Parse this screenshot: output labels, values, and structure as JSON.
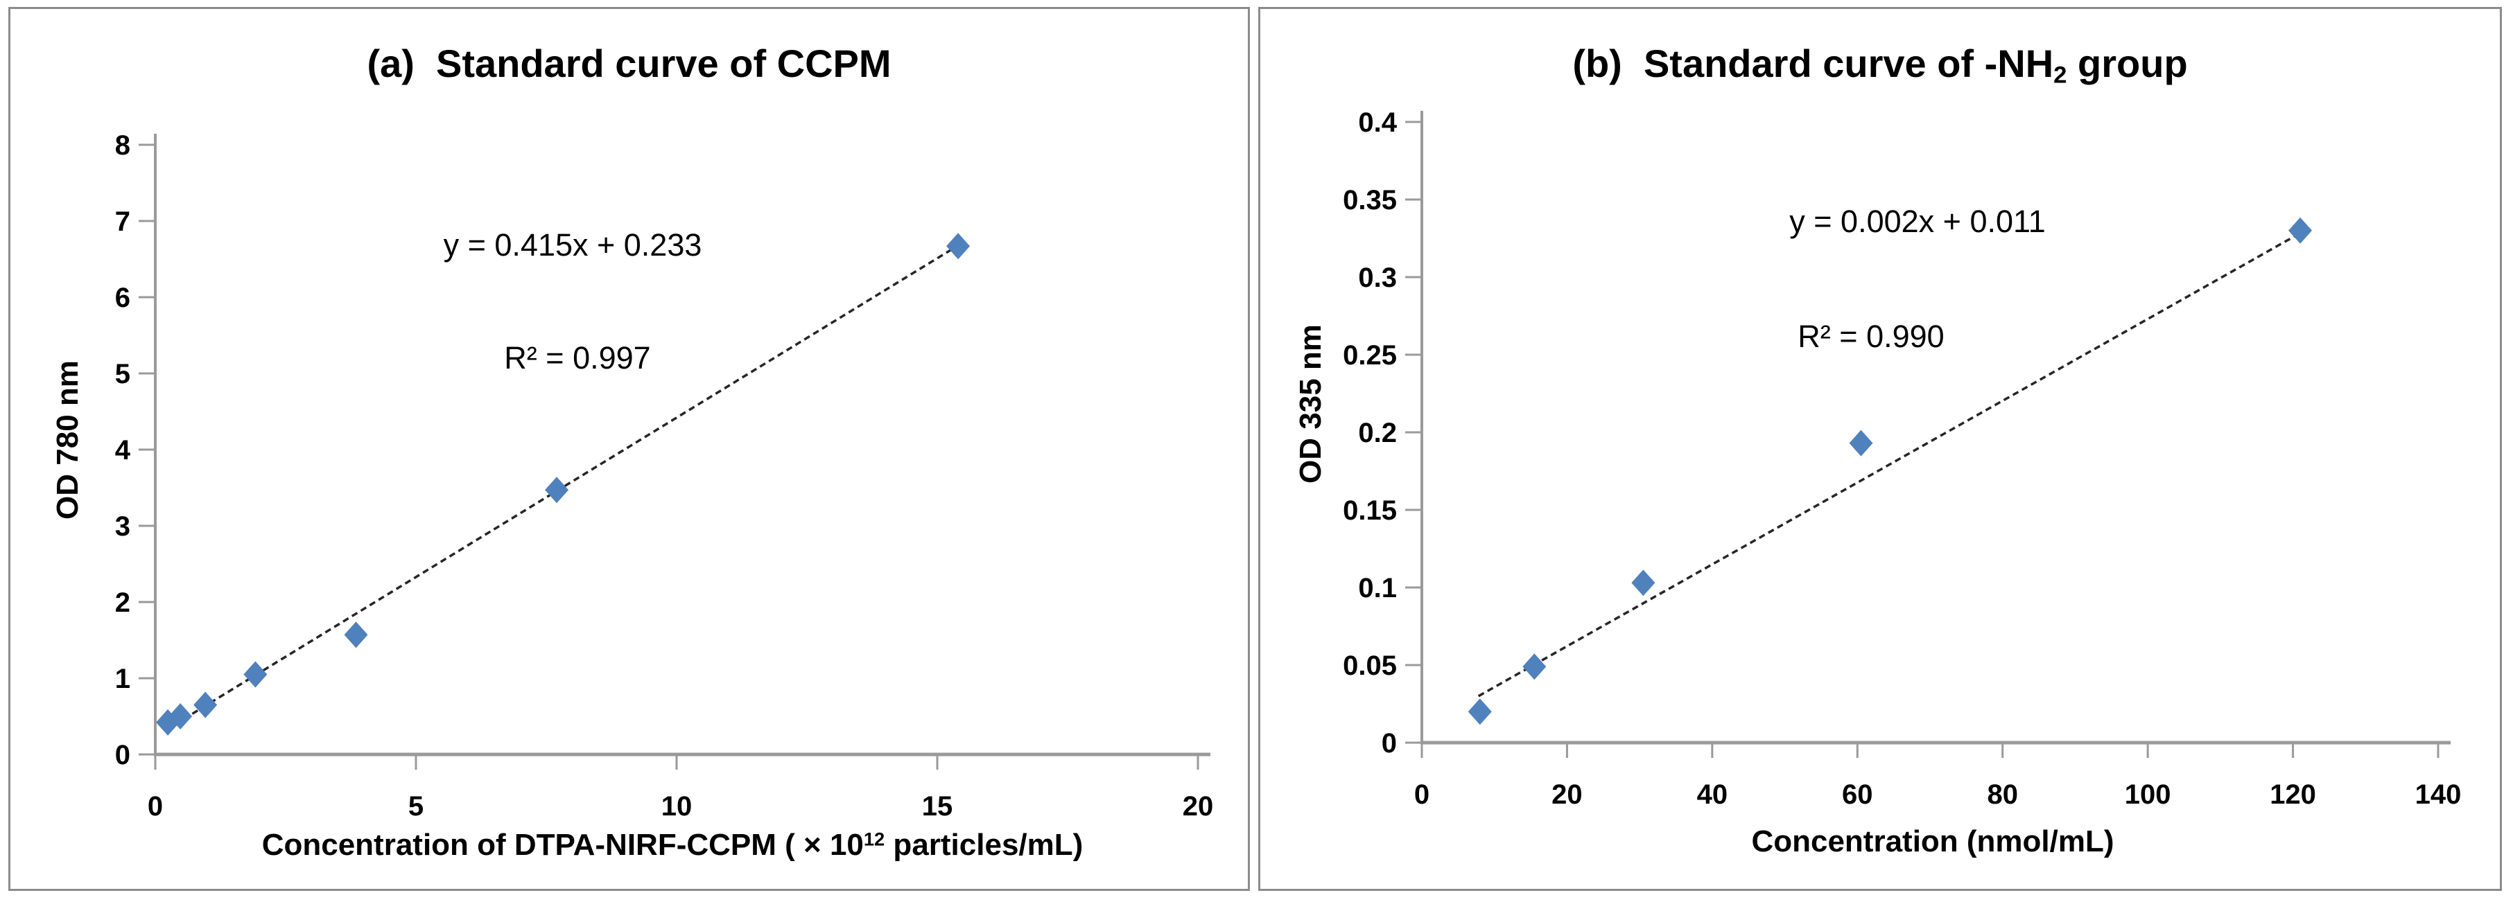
{
  "figure": {
    "panels": [
      {
        "label": "a",
        "title_pre": "(a)  Standard curve of CCPM",
        "title_sub": "",
        "title_post": "",
        "equation": "y = 0.415x + 0.233",
        "r_squared": "R² = 0.997",
        "y_axis_title": "OD 780 nm",
        "x_label_pre": "Concentration of DTPA-NIRF-CCPM ( × 10",
        "x_label_sup": "12",
        "x_label_post": " particles/mL)"
      },
      {
        "label": "b",
        "title_pre": "(b)  Standard curve of -NH",
        "title_sub": "2",
        "title_post": " group",
        "equation": "y = 0.002x + 0.011",
        "r_squared": "R² = 0.990",
        "y_axis_title": "OD 335 nm",
        "x_label_pre": "Concentration (nmol/mL)",
        "x_label_sup": "",
        "x_label_post": ""
      }
    ]
  },
  "chart_data": [
    {
      "type": "scatter",
      "title": "(a) Standard curve of CCPM",
      "xlabel": "Concentration of DTPA-NIRF-CCPM (× 10^12 particles/mL)",
      "ylabel": "OD 780 nm",
      "xlim": [
        0,
        20
      ],
      "ylim": [
        0,
        8
      ],
      "xticks": [
        "0",
        "5",
        "10",
        "15",
        "20"
      ],
      "xtick_values": [
        0,
        5,
        10,
        15,
        20
      ],
      "yticks": [
        "0",
        "1",
        "2",
        "3",
        "4",
        "5",
        "6",
        "7",
        "8"
      ],
      "ytick_values": [
        0,
        1,
        2,
        3,
        4,
        5,
        6,
        7,
        8
      ],
      "x": [
        0.24,
        0.48,
        0.96,
        1.92,
        3.85,
        7.7,
        15.4
      ],
      "y": [
        0.42,
        0.5,
        0.65,
        1.05,
        1.57,
        3.47,
        6.67
      ],
      "trendline": {
        "x1": 0.2,
        "y1": 0.32,
        "x2": 15.5,
        "y2": 6.72,
        "equation": "y = 0.415x + 0.233",
        "r_squared": 0.997
      },
      "grid": false,
      "legend": false
    },
    {
      "type": "scatter",
      "title": "(b) Standard curve of -NH2 group",
      "xlabel": "Concentration (nmol/mL)",
      "ylabel": "OD 335 nm",
      "xlim": [
        0,
        140
      ],
      "ylim": [
        0,
        0.4
      ],
      "xticks": [
        "0",
        "20",
        "40",
        "60",
        "80",
        "100",
        "120",
        "140"
      ],
      "xtick_values": [
        0,
        20,
        40,
        60,
        80,
        100,
        120,
        140
      ],
      "yticks": [
        "0",
        "0.05",
        "0.1",
        "0.15",
        "0.2",
        "0.25",
        "0.3",
        "0.35",
        "0.4"
      ],
      "ytick_values": [
        0,
        0.05,
        0.1,
        0.15,
        0.2,
        0.25,
        0.3,
        0.35,
        0.4
      ],
      "x": [
        8,
        15.5,
        30.5,
        60.5,
        121
      ],
      "y": [
        0.02,
        0.049,
        0.103,
        0.193,
        0.33
      ],
      "trendline": {
        "x1": 7.8,
        "y1": 0.03,
        "x2": 122,
        "y2": 0.331,
        "equation": "y = 0.002x + 0.011",
        "r_squared": 0.99
      },
      "grid": false,
      "legend": false
    }
  ],
  "colors": {
    "marker": "#4F81BD",
    "axis": "#9a9a9a",
    "trendline": "#262626",
    "panel_border": "#8c8c8c",
    "text": "#000000"
  }
}
